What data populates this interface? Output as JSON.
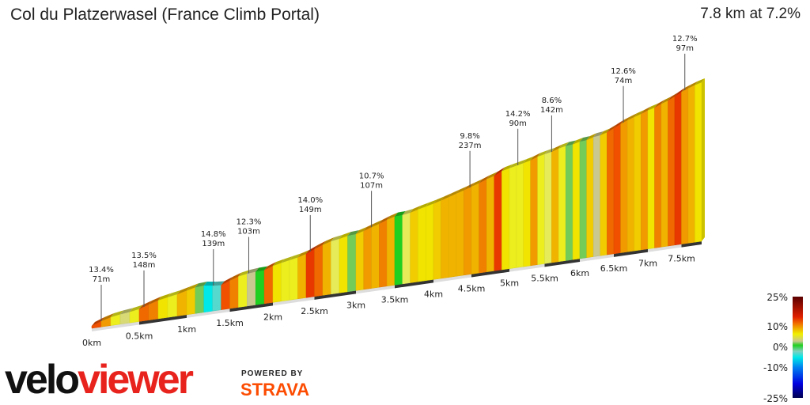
{
  "title": "Col du Platzerwasel (France Climb Portal)",
  "summary": "7.8 km at 7.2%",
  "chart_data": {
    "type": "area",
    "subtype": "3d-gradient-profile",
    "total_distance_km": 7.8,
    "average_gradient_pct": 7.2,
    "segment_length_km": 0.1,
    "gradients_pct": [
      13,
      10,
      6,
      4,
      6,
      12,
      11,
      7,
      6,
      9,
      8,
      2,
      -5,
      -3,
      13,
      11,
      6,
      3,
      1,
      12,
      7,
      6,
      6,
      9,
      14,
      12,
      9,
      5,
      7,
      2,
      8,
      10,
      9,
      11,
      9,
      1,
      5,
      8,
      7,
      7,
      8,
      9,
      9,
      9,
      10,
      9,
      11,
      9,
      14,
      7,
      6,
      6,
      7,
      10,
      6,
      5,
      9,
      6,
      2,
      7,
      2,
      8,
      3,
      8,
      12,
      13,
      10,
      9,
      8,
      10,
      7,
      11,
      9,
      12,
      14,
      10,
      9,
      7
    ],
    "x_ticks": [
      "0km",
      "0.5km",
      "1km",
      "1.5km",
      "2km",
      "2.5km",
      "3km",
      "3.5km",
      "4km",
      "4.5km",
      "5km",
      "5.5km",
      "6km",
      "6.5km",
      "7km",
      "7.5km"
    ],
    "annotations": [
      {
        "km": 0.1,
        "gradient": "13.4%",
        "length": "71m"
      },
      {
        "km": 0.55,
        "gradient": "13.5%",
        "length": "148m"
      },
      {
        "km": 1.31,
        "gradient": "14.8%",
        "length": "139m"
      },
      {
        "km": 1.72,
        "gradient": "12.3%",
        "length": "103m"
      },
      {
        "km": 2.45,
        "gradient": "14.0%",
        "length": "149m"
      },
      {
        "km": 3.2,
        "gradient": "10.7%",
        "length": "107m"
      },
      {
        "km": 4.48,
        "gradient": "9.8%",
        "length": "237m"
      },
      {
        "km": 5.12,
        "gradient": "14.2%",
        "length": "90m"
      },
      {
        "km": 5.6,
        "gradient": "8.6%",
        "length": "142m"
      },
      {
        "km": 6.64,
        "gradient": "12.6%",
        "length": "74m"
      },
      {
        "km": 7.55,
        "gradient": "12.7%",
        "length": "97m"
      }
    ],
    "legend": {
      "labels": [
        "25%",
        "10%",
        "0%",
        "-10%",
        "-25%"
      ],
      "values": [
        25,
        10,
        0,
        -10,
        -25
      ],
      "colors": [
        "#5a0000",
        "#e02000",
        "#f08000",
        "#f0f000",
        "#c8c890",
        "#20d020",
        "#80d0c0",
        "#00e8e8",
        "#0080f0",
        "#0000e0",
        "#000050"
      ]
    }
  },
  "branding": {
    "logo_part1": "velo",
    "logo_part2": "viewer",
    "powered_by": "POWERED BY",
    "strava": "STRAVA"
  }
}
